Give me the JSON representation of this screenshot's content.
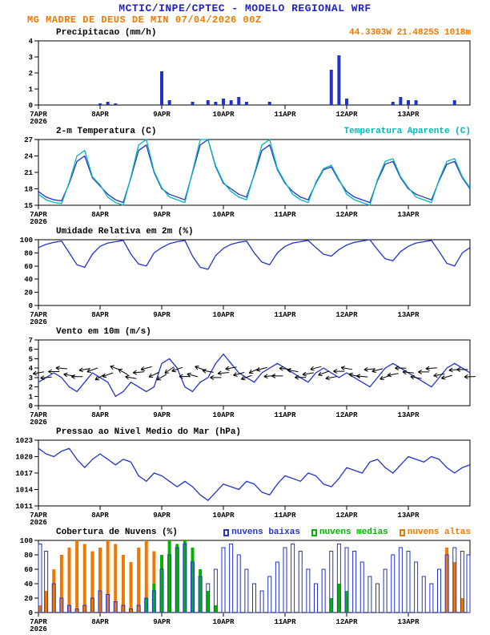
{
  "header": {
    "title": "MCTIC/INPE/CPTEC - MODELO REGIONAL WRF",
    "subtitle": "MG MADRE DE DEUS DE MIN 07/04/2026 00Z"
  },
  "colors": {
    "title": "#2222cc",
    "blue": "#2233cc",
    "cyan": "#00b8b8",
    "green": "#00b400",
    "orange": "#f07800",
    "axis": "#000000"
  },
  "x_axis": {
    "tick_labels": [
      "7APR",
      "8APR",
      "9APR",
      "10APR",
      "11APR",
      "12APR",
      "13APR"
    ],
    "year": "2026",
    "span_hours": 168,
    "step_hours": 3
  },
  "chart_data": [
    {
      "type": "bar",
      "title": "Precipitacao (mm/h)",
      "right_label": "44.3303W 21.4825S 1018m",
      "ylim": [
        0,
        4
      ],
      "yticks": [
        0,
        1,
        2,
        3,
        4
      ],
      "values": [
        0,
        0,
        0,
        0,
        0,
        0,
        0,
        0,
        0.1,
        0.2,
        0.1,
        0,
        0,
        0,
        0,
        0,
        2.1,
        0.3,
        0,
        0,
        0.2,
        0,
        0.3,
        0.2,
        0.4,
        0.3,
        0.5,
        0.2,
        0,
        0,
        0.2,
        0,
        0,
        0,
        0,
        0,
        0,
        0,
        2.2,
        3.1,
        0.4,
        0,
        0,
        0,
        0,
        0,
        0.2,
        0.5,
        0.3,
        0.3,
        0,
        0,
        0,
        0,
        0.3,
        0,
        0
      ]
    },
    {
      "type": "line",
      "title": "2-m Temperatura (C)",
      "right_label": "Temperatura Aparente (C)",
      "ylim": [
        15,
        27
      ],
      "yticks": [
        15,
        18,
        21,
        24,
        27
      ],
      "series": [
        {
          "name": "2-m Temperatura (C)",
          "color_key": "blue",
          "values": [
            17.5,
            16.5,
            16.0,
            15.8,
            19.0,
            23.0,
            24.0,
            20.0,
            18.5,
            17.0,
            16.0,
            15.5,
            20.0,
            25.0,
            26.0,
            21.0,
            18.0,
            17.0,
            16.5,
            16.0,
            21.0,
            26.0,
            27.0,
            22.0,
            19.0,
            18.0,
            17.0,
            16.5,
            20.5,
            25.0,
            26.0,
            21.5,
            19.0,
            17.5,
            16.5,
            16.0,
            19.0,
            21.5,
            22.0,
            19.5,
            17.5,
            16.5,
            16.0,
            15.5,
            19.5,
            22.5,
            23.0,
            20.0,
            18.0,
            17.0,
            16.5,
            16.0,
            19.5,
            22.5,
            23.0,
            20.0,
            18.0
          ]
        },
        {
          "name": "Temperatura Aparente (C)",
          "color_key": "cyan",
          "values": [
            17.0,
            16.0,
            15.5,
            15.3,
            19.2,
            24.0,
            25.0,
            20.2,
            18.7,
            16.5,
            15.5,
            15.0,
            20.2,
            26.0,
            27.0,
            21.2,
            18.2,
            16.5,
            16.0,
            15.5,
            21.2,
            27.0,
            27.0,
            22.2,
            19.2,
            17.5,
            16.5,
            16.0,
            20.7,
            26.0,
            27.0,
            21.7,
            19.2,
            17.0,
            16.0,
            15.5,
            19.2,
            21.7,
            22.3,
            19.7,
            17.0,
            16.0,
            15.5,
            15.0,
            19.7,
            23.0,
            23.5,
            20.2,
            18.2,
            16.5,
            16.0,
            15.5,
            19.7,
            23.0,
            23.5,
            20.2,
            18.2
          ]
        }
      ]
    },
    {
      "type": "line",
      "title": "Umidade Relativa em 2m (%)",
      "ylim": [
        0,
        100
      ],
      "yticks": [
        0,
        20,
        40,
        60,
        80,
        100
      ],
      "series": [
        {
          "name": "Umidade Relativa",
          "color_key": "blue",
          "values": [
            88,
            93,
            96,
            98,
            80,
            62,
            58,
            78,
            90,
            95,
            97,
            99,
            78,
            63,
            60,
            80,
            88,
            94,
            97,
            99,
            75,
            58,
            55,
            76,
            87,
            93,
            96,
            98,
            80,
            66,
            62,
            80,
            90,
            95,
            97,
            99,
            88,
            78,
            75,
            85,
            92,
            96,
            98,
            100,
            85,
            71,
            68,
            82,
            90,
            95,
            97,
            99,
            82,
            64,
            60,
            80,
            88
          ]
        }
      ]
    },
    {
      "type": "wind",
      "title": "Vento em 10m (m/s)",
      "ylim": [
        0,
        7
      ],
      "yticks": [
        0,
        1,
        2,
        3,
        4,
        5,
        6,
        7
      ],
      "series": [
        {
          "name": "Velocidade do vento",
          "color_key": "blue",
          "values": [
            2.5,
            3.0,
            3.5,
            3.0,
            2.0,
            1.5,
            2.5,
            3.5,
            3.0,
            2.5,
            1.0,
            1.5,
            2.5,
            2.0,
            1.5,
            2.0,
            4.5,
            5.0,
            4.0,
            2.0,
            1.5,
            2.5,
            3.0,
            4.5,
            5.5,
            4.5,
            3.5,
            3.0,
            2.5,
            3.5,
            4.0,
            4.5,
            4.0,
            3.5,
            3.0,
            2.5,
            3.5,
            4.0,
            3.5,
            3.0,
            3.5,
            3.0,
            2.5,
            2.0,
            3.0,
            4.0,
            4.5,
            4.0,
            3.5,
            3.0,
            2.5,
            2.0,
            3.0,
            4.0,
            4.5,
            4.0,
            3.5
          ]
        }
      ],
      "directions_deg": [
        170,
        175,
        180,
        185,
        190,
        180,
        170,
        160,
        150,
        160,
        200,
        210,
        190,
        175,
        165,
        155,
        150,
        145,
        160,
        180,
        195,
        200,
        190,
        180,
        175,
        170,
        165,
        160,
        155,
        165,
        175,
        180,
        185,
        190,
        180,
        170,
        165,
        160,
        170,
        180,
        190,
        195,
        185,
        175,
        165,
        160,
        170,
        180,
        185,
        190,
        180,
        175,
        170,
        165,
        175,
        180,
        178
      ]
    },
    {
      "type": "line",
      "title": "Pressao ao Nivel Medio do Mar (hPa)",
      "ylim": [
        1011,
        1023
      ],
      "yticks": [
        1011,
        1014,
        1017,
        1020,
        1023
      ],
      "series": [
        {
          "name": "Pressao ao nivel medio do mar",
          "color_key": "blue",
          "values": [
            1021.5,
            1020.5,
            1020.0,
            1021.0,
            1021.5,
            1019.5,
            1018.0,
            1019.5,
            1020.5,
            1019.5,
            1018.5,
            1019.5,
            1019.0,
            1016.5,
            1015.5,
            1017.0,
            1016.5,
            1015.5,
            1014.5,
            1015.5,
            1014.5,
            1013.0,
            1012.0,
            1013.5,
            1015.0,
            1014.5,
            1014.0,
            1015.5,
            1015.0,
            1013.5,
            1013.0,
            1015.0,
            1016.5,
            1016.0,
            1015.5,
            1017.0,
            1016.5,
            1015.0,
            1014.5,
            1016.0,
            1018.0,
            1017.5,
            1017.0,
            1019.0,
            1019.5,
            1018.0,
            1017.0,
            1018.5,
            1020.0,
            1019.5,
            1019.0,
            1020.0,
            1019.5,
            1018.0,
            1017.0,
            1018.0,
            1018.5
          ]
        }
      ]
    },
    {
      "type": "cloudbars",
      "title": "Cobertura de Nuvens (%)",
      "ylim": [
        0,
        100
      ],
      "yticks": [
        0,
        20,
        40,
        60,
        80,
        100
      ],
      "legend": [
        {
          "label": "nuvens baixas",
          "color_key": "blue"
        },
        {
          "label": "nuvens medias",
          "color_key": "green"
        },
        {
          "label": "nuvens altas",
          "color_key": "orange"
        }
      ],
      "series": [
        {
          "name": "nuvens altas",
          "color_key": "orange",
          "values": [
            10,
            30,
            60,
            80,
            90,
            100,
            95,
            85,
            90,
            100,
            95,
            80,
            70,
            90,
            100,
            85,
            60,
            40,
            20,
            10,
            0,
            0,
            0,
            0,
            0,
            0,
            0,
            0,
            0,
            0,
            0,
            0,
            0,
            0,
            0,
            0,
            0,
            0,
            0,
            0,
            0,
            0,
            0,
            0,
            0,
            0,
            0,
            0,
            0,
            0,
            0,
            0,
            0,
            90,
            70,
            20,
            0
          ]
        },
        {
          "name": "nuvens medias",
          "color_key": "green",
          "values": [
            0,
            0,
            0,
            0,
            0,
            0,
            0,
            0,
            0,
            0,
            0,
            0,
            0,
            0,
            20,
            40,
            80,
            100,
            95,
            100,
            90,
            60,
            30,
            10,
            0,
            0,
            0,
            0,
            0,
            0,
            0,
            0,
            0,
            0,
            0,
            0,
            0,
            0,
            20,
            40,
            30,
            0,
            0,
            0,
            0,
            0,
            0,
            0,
            0,
            0,
            0,
            0,
            0,
            0,
            0,
            0,
            0
          ]
        },
        {
          "name": "nuvens baixas",
          "color_key": "blue",
          "values": [
            95,
            85,
            40,
            20,
            10,
            5,
            10,
            20,
            30,
            25,
            15,
            10,
            5,
            10,
            20,
            30,
            60,
            80,
            90,
            95,
            70,
            50,
            40,
            60,
            90,
            95,
            80,
            60,
            40,
            30,
            50,
            70,
            90,
            95,
            85,
            60,
            40,
            60,
            85,
            95,
            90,
            85,
            70,
            50,
            40,
            60,
            80,
            90,
            85,
            70,
            50,
            40,
            60,
            80,
            90,
            85,
            80
          ]
        }
      ]
    }
  ]
}
